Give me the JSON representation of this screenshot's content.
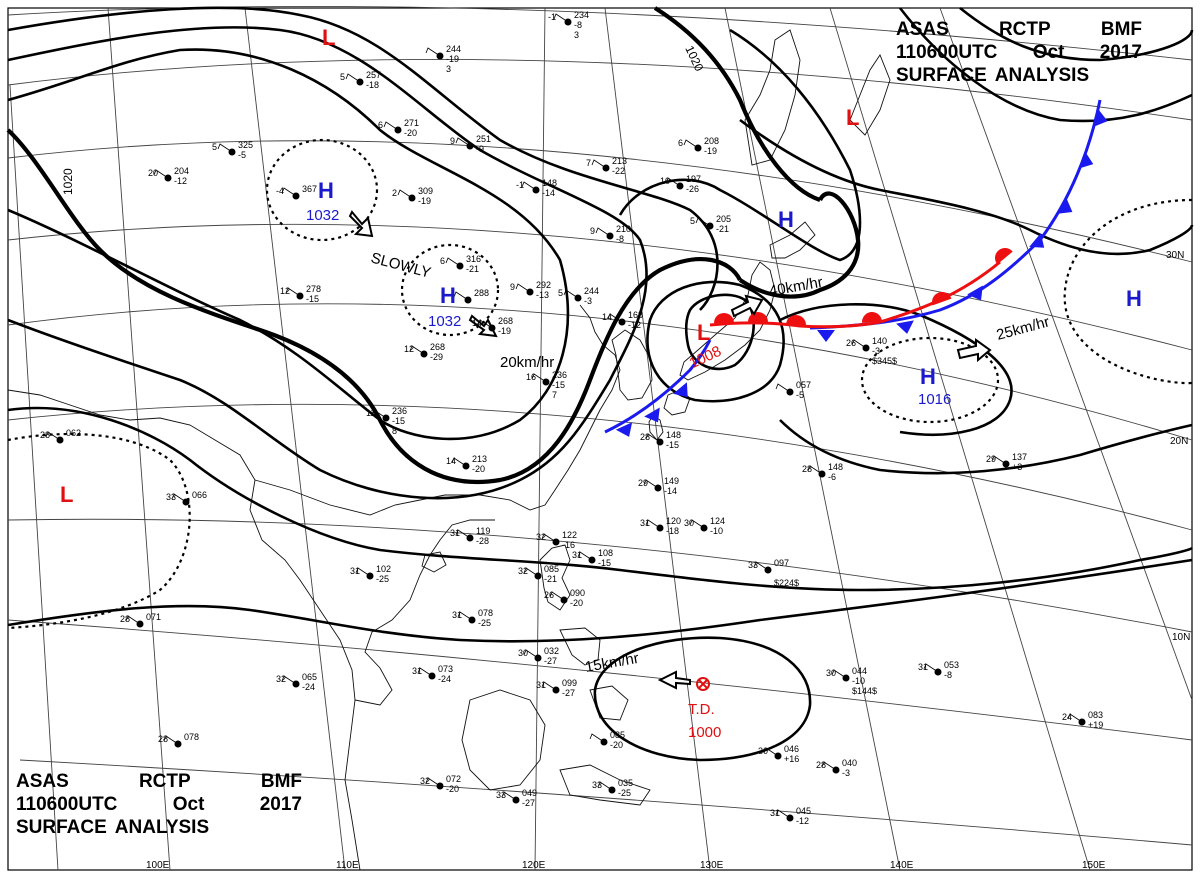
{
  "header": {
    "line1": [
      "ASAS",
      "RCTP",
      "BMF"
    ],
    "line2": [
      "110600UTC",
      "Oct",
      "2017"
    ],
    "line3": [
      "SURFACE",
      "ANALYSIS"
    ]
  },
  "isobar_labels": [
    "1020",
    "1020"
  ],
  "pressure_centers": [
    {
      "type": "H",
      "value": "1032",
      "color": "#1a1acc"
    },
    {
      "type": "H",
      "value": "1032",
      "color": "#1a1acc"
    },
    {
      "type": "H",
      "value": "1016",
      "color": "#1a1acc"
    },
    {
      "type": "H",
      "value": "",
      "color": "#1a1acc"
    },
    {
      "type": "H",
      "value": "",
      "color": "#1a1acc"
    },
    {
      "type": "L",
      "value": "1008",
      "color": "#e01010"
    },
    {
      "type": "L",
      "value": "",
      "color": "#e01010"
    },
    {
      "type": "L",
      "value": "",
      "color": "#e01010"
    },
    {
      "type": "L",
      "value": "",
      "color": "#e01010"
    }
  ],
  "tropical_depression": {
    "label": "T.D.",
    "value": "1000",
    "color": "#e01010"
  },
  "motion_labels": [
    "SLOWLY",
    "20km/hr",
    "40km/hr",
    "25km/hr",
    "15km/hr"
  ],
  "lat_labels": [
    "30N",
    "20N",
    "10N"
  ],
  "lon_labels": [
    "100E",
    "110E",
    "120E",
    "130E",
    "140E",
    "150E"
  ],
  "front_colors": {
    "cold": "#1a1aee",
    "warm": "#ee1010"
  },
  "stations": [
    {
      "top": "234",
      "mid": "-8",
      "bot": "3",
      "left": "-1"
    },
    {
      "top": "244",
      "mid": "-19",
      "bot": "3",
      "left": ""
    },
    {
      "top": "257",
      "mid": "-18",
      "bot": "",
      "left": "5"
    },
    {
      "top": "271",
      "mid": "-20",
      "bot": "",
      "left": "6"
    },
    {
      "top": "251",
      "mid": "-9",
      "bot": "",
      "left": "9"
    },
    {
      "top": "325",
      "mid": "-5",
      "bot": "",
      "left": "5"
    },
    {
      "top": "204",
      "mid": "-12",
      "bot": "",
      "left": "20"
    },
    {
      "top": "367",
      "mid": "",
      "bot": "",
      "left": "-4"
    },
    {
      "top": "309",
      "mid": "-19",
      "bot": "",
      "left": "2"
    },
    {
      "top": "213",
      "mid": "-22",
      "bot": "",
      "left": "7"
    },
    {
      "top": "148",
      "mid": "-14",
      "bot": "",
      "left": "-1"
    },
    {
      "top": "208",
      "mid": "-19",
      "bot": "",
      "left": "6"
    },
    {
      "top": "197",
      "mid": "-26",
      "bot": "",
      "left": "10"
    },
    {
      "top": "210",
      "mid": "-8",
      "bot": "",
      "left": "9"
    },
    {
      "top": "205",
      "mid": "-21",
      "bot": "",
      "left": "5"
    },
    {
      "top": "316",
      "mid": "-21",
      "bot": "",
      "left": "6"
    },
    {
      "top": "288",
      "mid": "",
      "bot": "",
      "left": ""
    },
    {
      "top": "292",
      "mid": "-13",
      "bot": "",
      "left": "9"
    },
    {
      "top": "244",
      "mid": "-3",
      "bot": "",
      "left": "5"
    },
    {
      "top": "278",
      "mid": "-15",
      "bot": "",
      "left": "12"
    },
    {
      "top": "268",
      "mid": "-19",
      "bot": "",
      "left": "14"
    },
    {
      "top": "268",
      "mid": "-29",
      "bot": "",
      "left": "12"
    },
    {
      "top": "168",
      "mid": "-12",
      "bot": "",
      "left": "14"
    },
    {
      "top": "236",
      "mid": "-15",
      "bot": "7",
      "left": "16"
    },
    {
      "top": "236",
      "mid": "-15",
      "bot": "8",
      "left": "11"
    },
    {
      "top": "213",
      "mid": "-20",
      "bot": "",
      "left": "14"
    },
    {
      "top": "140",
      "mid": "-3",
      "bot": "$345$",
      "left": "26"
    },
    {
      "top": "057",
      "mid": "-5",
      "bot": "",
      "left": ""
    },
    {
      "top": "062",
      "mid": "",
      "bot": "",
      "left": "28"
    },
    {
      "top": "066",
      "mid": "",
      "bot": "",
      "left": "33"
    },
    {
      "top": "148",
      "mid": "-15",
      "bot": "",
      "left": "28"
    },
    {
      "top": "149",
      "mid": "-14",
      "bot": "",
      "left": "29"
    },
    {
      "top": "148",
      "mid": "-6",
      "bot": "",
      "left": "28"
    },
    {
      "top": "137",
      "mid": "+3",
      "bot": "",
      "left": "29"
    },
    {
      "top": "120",
      "mid": "-18",
      "bot": "",
      "left": "31"
    },
    {
      "top": "124",
      "mid": "-10",
      "bot": "",
      "left": "30"
    },
    {
      "top": "119",
      "mid": "-28",
      "bot": "",
      "left": "31"
    },
    {
      "top": "122",
      "mid": "-16",
      "bot": "",
      "left": "32"
    },
    {
      "top": "108",
      "mid": "-15",
      "bot": "",
      "left": "31"
    },
    {
      "top": "097",
      "mid": "",
      "bot": "$224$",
      "left": "33"
    },
    {
      "top": "102",
      "mid": "-25",
      "bot": "",
      "left": "31"
    },
    {
      "top": "085",
      "mid": "-21",
      "bot": "",
      "left": "32"
    },
    {
      "top": "090",
      "mid": "-20",
      "bot": "",
      "left": "26"
    },
    {
      "top": "071",
      "mid": "",
      "bot": "",
      "left": "28"
    },
    {
      "top": "078",
      "mid": "-25",
      "bot": "",
      "left": "31"
    },
    {
      "top": "073",
      "mid": "-24",
      "bot": "",
      "left": "31"
    },
    {
      "top": "065",
      "mid": "-24",
      "bot": "",
      "left": "32"
    },
    {
      "top": "032",
      "mid": "-27",
      "bot": "",
      "left": "30"
    },
    {
      "top": "099",
      "mid": "-27",
      "bot": "",
      "left": "31"
    },
    {
      "top": "044",
      "mid": "-10",
      "bot": "$144$",
      "left": "30"
    },
    {
      "top": "053",
      "mid": "-8",
      "bot": "",
      "left": "31"
    },
    {
      "top": "083",
      "mid": "+19",
      "bot": "",
      "left": "24"
    },
    {
      "top": "078",
      "mid": "",
      "bot": "",
      "left": "28"
    },
    {
      "top": "046",
      "mid": "+16",
      "bot": "",
      "left": "30"
    },
    {
      "top": "040",
      "mid": "-3",
      "bot": "",
      "left": "28"
    },
    {
      "top": "072",
      "mid": "-20",
      "bot": "",
      "left": "32"
    },
    {
      "top": "049",
      "mid": "-27",
      "bot": "",
      "left": "33"
    },
    {
      "top": "035",
      "mid": "-25",
      "bot": "",
      "left": "33"
    },
    {
      "top": "045",
      "mid": "-12",
      "bot": "",
      "left": "31"
    },
    {
      "top": "085",
      "mid": "-20",
      "bot": "",
      "left": ""
    }
  ]
}
